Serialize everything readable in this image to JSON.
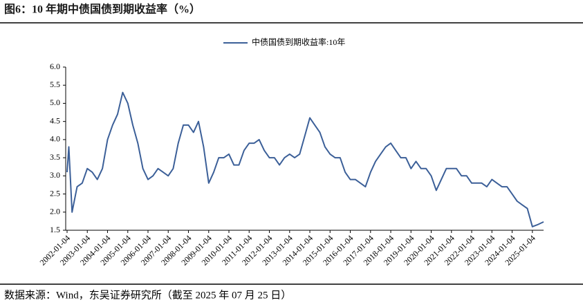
{
  "chart_data": {
    "type": "line",
    "title": "图6：10 年期中债国债到期收益率（%）",
    "source": "数据来源：Wind，东吴证券研究所（截至 2025 年 07 月 25 日）",
    "x": [
      "2002-01-04",
      "2002-02-04",
      "2002-04-04",
      "2002-07-04",
      "2002-10-04",
      "2003-01-04",
      "2003-04-04",
      "2003-07-04",
      "2003-10-04",
      "2004-01-04",
      "2004-04-04",
      "2004-07-04",
      "2004-10-04",
      "2005-01-04",
      "2005-04-04",
      "2005-07-04",
      "2005-10-04",
      "2006-01-04",
      "2006-04-04",
      "2006-07-04",
      "2006-10-04",
      "2007-01-04",
      "2007-04-04",
      "2007-07-04",
      "2007-10-04",
      "2008-01-04",
      "2008-04-04",
      "2008-07-04",
      "2008-10-04",
      "2009-01-04",
      "2009-04-04",
      "2009-07-04",
      "2009-10-04",
      "2010-01-04",
      "2010-04-04",
      "2010-07-04",
      "2010-10-04",
      "2011-01-04",
      "2011-04-04",
      "2011-07-04",
      "2011-10-04",
      "2012-01-04",
      "2012-04-04",
      "2012-07-04",
      "2012-10-04",
      "2013-01-04",
      "2013-04-04",
      "2013-07-04",
      "2013-10-04",
      "2014-01-04",
      "2014-04-04",
      "2014-07-04",
      "2014-10-04",
      "2015-01-04",
      "2015-04-04",
      "2015-07-04",
      "2015-10-04",
      "2016-01-04",
      "2016-04-04",
      "2016-07-04",
      "2016-10-04",
      "2017-01-04",
      "2017-04-04",
      "2017-07-04",
      "2017-10-04",
      "2018-01-04",
      "2018-04-04",
      "2018-07-04",
      "2018-10-04",
      "2019-01-04",
      "2019-04-04",
      "2019-07-04",
      "2019-10-04",
      "2020-01-04",
      "2020-04-04",
      "2020-07-04",
      "2020-10-04",
      "2021-01-04",
      "2021-04-04",
      "2021-07-04",
      "2021-10-04",
      "2022-01-04",
      "2022-04-04",
      "2022-07-04",
      "2022-10-04",
      "2023-01-04",
      "2023-04-04",
      "2023-07-04",
      "2023-10-04",
      "2024-01-04",
      "2024-04-04",
      "2024-07-04",
      "2024-10-04",
      "2025-01-04",
      "2025-04-04",
      "2025-07-25"
    ],
    "series": [
      {
        "name": "中债国债到期收益率:10年",
        "color": "#3b5f98",
        "values": [
          3.1,
          3.8,
          2.0,
          2.7,
          2.8,
          3.2,
          3.1,
          2.9,
          3.2,
          4.0,
          4.4,
          4.7,
          5.3,
          5.0,
          4.4,
          3.9,
          3.2,
          2.9,
          3.0,
          3.2,
          3.1,
          3.0,
          3.2,
          3.9,
          4.4,
          4.4,
          4.2,
          4.5,
          3.8,
          2.8,
          3.1,
          3.5,
          3.5,
          3.6,
          3.3,
          3.3,
          3.7,
          3.9,
          3.9,
          4.0,
          3.7,
          3.5,
          3.5,
          3.3,
          3.5,
          3.6,
          3.5,
          3.6,
          4.1,
          4.6,
          4.4,
          4.2,
          3.8,
          3.6,
          3.5,
          3.5,
          3.1,
          2.9,
          2.9,
          2.8,
          2.7,
          3.1,
          3.4,
          3.6,
          3.8,
          3.9,
          3.7,
          3.5,
          3.5,
          3.2,
          3.4,
          3.2,
          3.2,
          3.0,
          2.6,
          2.9,
          3.2,
          3.2,
          3.2,
          3.0,
          3.0,
          2.8,
          2.8,
          2.8,
          2.7,
          2.9,
          2.8,
          2.7,
          2.7,
          2.5,
          2.3,
          2.2,
          2.1,
          1.6,
          1.65,
          1.73
        ]
      }
    ],
    "xlim": [
      "2002-01-04",
      "2025-07-25"
    ],
    "xticks": [
      "2002-01-04",
      "2003-01-04",
      "2004-01-04",
      "2005-01-04",
      "2006-01-04",
      "2007-01-04",
      "2008-01-04",
      "2009-01-04",
      "2010-01-04",
      "2011-01-04",
      "2012-01-04",
      "2013-01-04",
      "2014-01-04",
      "2015-01-04",
      "2016-01-04",
      "2017-01-04",
      "2018-01-04",
      "2019-01-04",
      "2020-01-04",
      "2021-01-04",
      "2022-01-04",
      "2023-01-04",
      "2024-01-04",
      "2025-01-04"
    ],
    "ylim": [
      1.5,
      6.0
    ],
    "yticks": [
      {
        "value": 1.5,
        "label": "1.5"
      },
      {
        "value": 2,
        "label": "2.0"
      },
      2.5,
      {
        "value": 3,
        "label": "3.0"
      },
      3.5,
      {
        "value": 4,
        "label": "4.0"
      },
      4.5,
      {
        "value": 5,
        "label": "5.0"
      },
      5.5,
      {
        "value": 6,
        "label": "6.0"
      }
    ],
    "legend": "top"
  }
}
